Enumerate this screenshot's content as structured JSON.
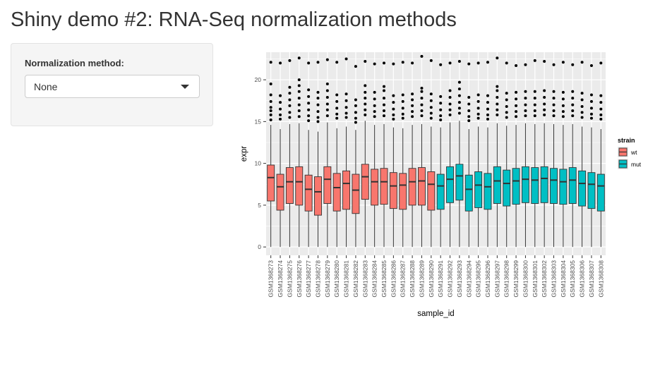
{
  "app": {
    "title": "Shiny demo #2: RNA-Seq normalization methods"
  },
  "sidebar": {
    "control_label": "Normalization method:",
    "selected_option": "None"
  },
  "colors": {
    "wt": "#F8766D",
    "mut": "#00BFC4",
    "panel_background": "#EBEBEB",
    "grid": "#FFFFFF"
  },
  "chart_data": {
    "type": "boxplot",
    "xlabel": "sample_id",
    "ylabel": "expr",
    "ylim": [
      -1,
      23.3
    ],
    "yticks": [
      0,
      5,
      10,
      15,
      20
    ],
    "ytick_labels": [
      "0",
      "5",
      "10",
      "15",
      "20"
    ],
    "grid": true,
    "legend": {
      "title": "strain",
      "position": "right",
      "entries": [
        {
          "key": "wt",
          "label": "wt",
          "color": "#F8766D"
        },
        {
          "key": "mut",
          "label": "mut",
          "color": "#00BFC4"
        }
      ]
    },
    "samples": [
      {
        "id": "GSM1368273",
        "strain": "wt",
        "min": 0,
        "q1": 5.5,
        "median": 8.3,
        "q3": 9.8,
        "max": 14.6,
        "outliers": [
          15.2,
          15.8,
          16.3,
          16.7,
          17.4,
          18.2,
          19.5,
          22.1
        ]
      },
      {
        "id": "GSM1368274",
        "strain": "wt",
        "min": 0,
        "q1": 4.4,
        "median": 7.2,
        "q3": 8.7,
        "max": 14.1,
        "outliers": [
          15.3,
          15.8,
          16.5,
          17.3,
          18.1,
          22.0
        ]
      },
      {
        "id": "GSM1368275",
        "strain": "wt",
        "min": 0,
        "q1": 5.2,
        "median": 7.8,
        "q3": 9.5,
        "max": 14.7,
        "outliers": [
          15.5,
          16.1,
          16.9,
          17.6,
          18.4,
          19.1,
          22.3
        ]
      },
      {
        "id": "GSM1368276",
        "strain": "wt",
        "min": 0,
        "q1": 5.0,
        "median": 7.8,
        "q3": 9.6,
        "max": 14.8,
        "outliers": [
          15.6,
          16.3,
          17.0,
          17.8,
          18.6,
          19.3,
          20.0,
          22.6
        ]
      },
      {
        "id": "GSM1368277",
        "strain": "wt",
        "min": 0,
        "q1": 4.3,
        "median": 6.9,
        "q3": 8.6,
        "max": 14.0,
        "outliers": [
          15.1,
          15.7,
          16.4,
          17.2,
          18.0,
          18.8,
          22.0
        ]
      },
      {
        "id": "GSM1368278",
        "strain": "wt",
        "min": 0,
        "q1": 3.8,
        "median": 6.6,
        "q3": 8.4,
        "max": 13.8,
        "outliers": [
          15.0,
          15.5,
          16.2,
          17.0,
          17.8,
          18.5,
          22.1
        ]
      },
      {
        "id": "GSM1368279",
        "strain": "wt",
        "min": 0,
        "q1": 5.2,
        "median": 8.1,
        "q3": 9.6,
        "max": 14.9,
        "outliers": [
          15.7,
          16.4,
          17.1,
          17.9,
          18.7,
          19.5,
          22.4
        ]
      },
      {
        "id": "GSM1368280",
        "strain": "wt",
        "min": 0,
        "q1": 4.3,
        "median": 7.1,
        "q3": 8.8,
        "max": 14.2,
        "outliers": [
          15.4,
          15.9,
          16.6,
          17.4,
          18.2,
          22.1
        ]
      },
      {
        "id": "GSM1368281",
        "strain": "wt",
        "min": 0,
        "q1": 4.5,
        "median": 7.6,
        "q3": 9.1,
        "max": 14.4,
        "outliers": [
          15.5,
          16.0,
          16.7,
          17.5,
          18.3,
          22.5
        ]
      },
      {
        "id": "GSM1368282",
        "strain": "wt",
        "min": 0,
        "q1": 4.0,
        "median": 6.8,
        "q3": 8.7,
        "max": 14.0,
        "outliers": [
          14.9,
          15.4,
          16.1,
          16.9,
          17.6,
          21.6
        ]
      },
      {
        "id": "GSM1368283",
        "strain": "wt",
        "min": 0,
        "q1": 5.7,
        "median": 8.4,
        "q3": 9.9,
        "max": 15.1,
        "outliers": [
          15.8,
          16.4,
          17.1,
          17.8,
          18.5,
          19.3,
          22.2
        ]
      },
      {
        "id": "GSM1368284",
        "strain": "wt",
        "min": 0,
        "q1": 5.0,
        "median": 7.8,
        "q3": 9.3,
        "max": 14.6,
        "outliers": [
          15.6,
          16.2,
          16.9,
          17.7,
          18.5,
          21.9
        ]
      },
      {
        "id": "GSM1368285",
        "strain": "wt",
        "min": 0,
        "q1": 5.1,
        "median": 7.8,
        "q3": 9.4,
        "max": 14.7,
        "outliers": [
          15.7,
          16.3,
          17.0,
          17.8,
          18.7,
          19.2,
          22.0
        ]
      },
      {
        "id": "GSM1368286",
        "strain": "wt",
        "min": 0,
        "q1": 4.6,
        "median": 7.3,
        "q3": 8.9,
        "max": 14.3,
        "outliers": [
          15.3,
          15.8,
          16.5,
          17.3,
          18.1,
          21.9
        ]
      },
      {
        "id": "GSM1368287",
        "strain": "wt",
        "min": 0,
        "q1": 4.5,
        "median": 7.4,
        "q3": 8.8,
        "max": 14.2,
        "outliers": [
          15.4,
          15.9,
          16.6,
          17.4,
          18.2,
          22.1
        ]
      },
      {
        "id": "GSM1368288",
        "strain": "wt",
        "min": 0,
        "q1": 5.0,
        "median": 7.8,
        "q3": 9.4,
        "max": 14.6,
        "outliers": [
          15.6,
          16.2,
          16.9,
          17.6,
          18.3,
          22.0
        ]
      },
      {
        "id": "GSM1368289",
        "strain": "wt",
        "min": 0,
        "q1": 5.0,
        "median": 7.9,
        "q3": 9.5,
        "max": 14.7,
        "outliers": [
          15.7,
          16.3,
          17.0,
          17.8,
          18.6,
          19.0,
          22.8
        ]
      },
      {
        "id": "GSM1368290",
        "strain": "wt",
        "min": 0,
        "q1": 4.4,
        "median": 7.5,
        "q3": 9.0,
        "max": 14.4,
        "outliers": [
          15.4,
          16.0,
          16.7,
          17.5,
          18.3,
          22.3
        ]
      },
      {
        "id": "GSM1368291",
        "strain": "mut",
        "min": 0,
        "q1": 4.5,
        "median": 7.3,
        "q3": 8.7,
        "max": 14.3,
        "outliers": [
          15.2,
          15.7,
          16.4,
          17.2,
          18.0,
          21.8
        ]
      },
      {
        "id": "GSM1368292",
        "strain": "mut",
        "min": 0,
        "q1": 5.3,
        "median": 8.1,
        "q3": 9.6,
        "max": 14.9,
        "outliers": [
          15.8,
          16.4,
          17.1,
          17.9,
          18.7,
          22.0
        ]
      },
      {
        "id": "GSM1368293",
        "strain": "mut",
        "min": 0,
        "q1": 5.6,
        "median": 8.5,
        "q3": 9.9,
        "max": 15.1,
        "outliers": [
          16.0,
          16.6,
          17.3,
          18.1,
          18.9,
          19.7,
          22.2
        ]
      },
      {
        "id": "GSM1368294",
        "strain": "mut",
        "min": 0,
        "q1": 4.3,
        "median": 6.9,
        "q3": 8.6,
        "max": 14.1,
        "outliers": [
          15.1,
          15.6,
          16.3,
          17.1,
          17.9,
          21.9
        ]
      },
      {
        "id": "GSM1368295",
        "strain": "mut",
        "min": 0,
        "q1": 4.7,
        "median": 7.4,
        "q3": 9.0,
        "max": 14.4,
        "outliers": [
          15.4,
          15.9,
          16.6,
          17.4,
          18.2,
          22.0
        ]
      },
      {
        "id": "GSM1368296",
        "strain": "mut",
        "min": 0,
        "q1": 4.5,
        "median": 7.2,
        "q3": 8.8,
        "max": 14.3,
        "outliers": [
          15.3,
          15.8,
          16.5,
          17.3,
          18.1,
          22.1
        ]
      },
      {
        "id": "GSM1368297",
        "strain": "mut",
        "min": 0,
        "q1": 5.2,
        "median": 7.9,
        "q3": 9.6,
        "max": 14.8,
        "outliers": [
          15.8,
          16.4,
          17.1,
          17.9,
          18.7,
          19.2,
          22.6
        ]
      },
      {
        "id": "GSM1368298",
        "strain": "mut",
        "min": 0,
        "q1": 4.9,
        "median": 7.6,
        "q3": 9.2,
        "max": 14.5,
        "outliers": [
          15.5,
          16.1,
          16.8,
          17.6,
          18.4,
          22.0
        ]
      },
      {
        "id": "GSM1368299",
        "strain": "mut",
        "min": 0,
        "q1": 5.1,
        "median": 7.9,
        "q3": 9.4,
        "max": 14.6,
        "outliers": [
          15.6,
          16.2,
          16.9,
          17.7,
          18.5,
          21.7
        ]
      },
      {
        "id": "GSM1368300",
        "strain": "mut",
        "min": 0,
        "q1": 5.3,
        "median": 8.1,
        "q3": 9.6,
        "max": 14.8,
        "outliers": [
          15.7,
          16.3,
          17.0,
          17.8,
          18.6,
          21.8
        ]
      },
      {
        "id": "GSM1368301",
        "strain": "mut",
        "min": 0,
        "q1": 5.2,
        "median": 8.0,
        "q3": 9.5,
        "max": 14.7,
        "outliers": [
          15.7,
          16.3,
          17.0,
          17.8,
          18.6,
          22.3
        ]
      },
      {
        "id": "GSM1368302",
        "strain": "mut",
        "min": 0,
        "q1": 5.3,
        "median": 8.2,
        "q3": 9.6,
        "max": 14.8,
        "outliers": [
          15.8,
          16.4,
          17.1,
          17.9,
          18.7,
          22.2
        ]
      },
      {
        "id": "GSM1368303",
        "strain": "mut",
        "min": 0,
        "q1": 5.2,
        "median": 8.0,
        "q3": 9.4,
        "max": 14.7,
        "outliers": [
          15.7,
          16.3,
          17.0,
          17.8,
          18.6,
          21.8
        ]
      },
      {
        "id": "GSM1368304",
        "strain": "mut",
        "min": 0,
        "q1": 5.1,
        "median": 7.8,
        "q3": 9.3,
        "max": 14.6,
        "outliers": [
          15.6,
          16.2,
          16.9,
          17.7,
          18.5,
          22.1
        ]
      },
      {
        "id": "GSM1368305",
        "strain": "mut",
        "min": 0,
        "q1": 5.2,
        "median": 8.0,
        "q3": 9.5,
        "max": 14.7,
        "outliers": [
          15.7,
          16.3,
          17.0,
          17.8,
          18.6,
          21.8
        ]
      },
      {
        "id": "GSM1368306",
        "strain": "mut",
        "min": 0,
        "q1": 4.9,
        "median": 7.6,
        "q3": 9.1,
        "max": 14.4,
        "outliers": [
          15.5,
          16.1,
          16.8,
          17.6,
          18.4,
          22.1
        ]
      },
      {
        "id": "GSM1368307",
        "strain": "mut",
        "min": 0,
        "q1": 4.6,
        "median": 7.5,
        "q3": 8.9,
        "max": 14.3,
        "outliers": [
          15.4,
          15.9,
          16.6,
          17.4,
          18.2,
          21.7
        ]
      },
      {
        "id": "GSM1368308",
        "strain": "mut",
        "min": 0,
        "q1": 4.3,
        "median": 7.3,
        "q3": 8.7,
        "max": 14.1,
        "outliers": [
          15.3,
          15.8,
          16.5,
          17.3,
          18.1,
          22.0
        ]
      }
    ]
  }
}
